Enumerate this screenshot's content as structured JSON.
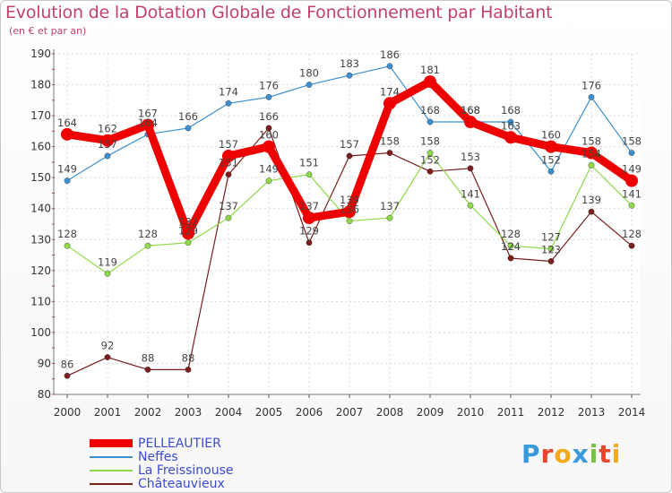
{
  "header": {
    "title": "Evolution de la Dotation Globale de Fonctionnement par Habitant",
    "subtitle": "(en € et par an)"
  },
  "logo": {
    "text": "Proxiti",
    "letters": [
      "P",
      "r",
      "o",
      "x",
      "i",
      "t",
      "i"
    ],
    "colors": [
      "#3a9ad9",
      "#e8462b",
      "#f2a91c",
      "#3a9ad9",
      "#7cc242",
      "#e8462b",
      "#f2a91c"
    ]
  },
  "chart_data": {
    "type": "line",
    "title": "Evolution de la Dotation Globale de Fonctionnement par Habitant",
    "subtitle": "(en € et par an)",
    "xlabel": "",
    "ylabel": "",
    "x": [
      "2000",
      "2001",
      "2002",
      "2003",
      "2004",
      "2005",
      "2006",
      "2007",
      "2008",
      "2009",
      "2010",
      "2011",
      "2012",
      "2013",
      "2014"
    ],
    "ylim": [
      80,
      190
    ],
    "yticks": [
      80,
      90,
      100,
      110,
      120,
      130,
      140,
      150,
      160,
      170,
      180,
      190
    ],
    "grid": true,
    "legend_position": "bottom-left",
    "series": [
      {
        "name": "PELLEAUTIER",
        "color": "#ee0000",
        "highlight": true,
        "values": [
          164,
          162,
          167,
          132,
          157,
          160,
          137,
          139,
          174,
          181,
          168,
          163,
          160,
          158,
          149
        ],
        "labels": [
          "164",
          "162",
          "167",
          "132",
          "157",
          "160",
          "137",
          "139",
          "174",
          "181",
          "168",
          "163",
          "160",
          "158",
          "149"
        ]
      },
      {
        "name": "Neffes",
        "color": "#3d8fcf",
        "highlight": false,
        "values": [
          149,
          157,
          164,
          166,
          174,
          176,
          180,
          183,
          186,
          168,
          168,
          168,
          152,
          176,
          158
        ],
        "labels": [
          "149",
          "157",
          "164",
          "166",
          "174",
          "176",
          "180",
          "183",
          "186",
          "168",
          "168",
          "168",
          "152",
          "176",
          "158"
        ]
      },
      {
        "name": "La Freissinouse",
        "color": "#8fd84a",
        "highlight": false,
        "values": [
          128,
          119,
          128,
          129,
          137,
          149,
          151,
          136,
          137,
          158,
          141,
          128,
          127,
          154,
          141
        ],
        "labels": [
          "128",
          "119",
          "128",
          "129",
          "137",
          "149",
          "151",
          "136",
          "137",
          "158",
          "141",
          "128",
          "127",
          "154",
          "141"
        ]
      },
      {
        "name": "Châteauvieux",
        "color": "#7a1e1e",
        "highlight": false,
        "values": [
          86,
          92,
          88,
          88,
          151,
          166,
          129,
          157,
          158,
          152,
          153,
          124,
          123,
          139,
          128
        ],
        "labels": [
          "86",
          "92",
          "88",
          "88",
          "151",
          "166",
          "129",
          "157",
          "158",
          "152",
          "153",
          "124",
          "123",
          "139",
          "128"
        ]
      }
    ]
  }
}
